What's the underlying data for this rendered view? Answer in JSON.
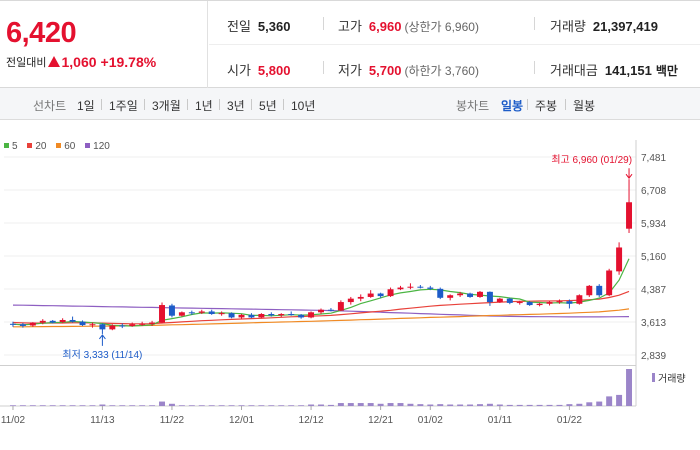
{
  "quote": {
    "price": "6,420",
    "change_label": "전일대비",
    "change_value": "1,060",
    "change_percent": "+19.78%",
    "prev_close_label": "전일",
    "prev_close": "5,360",
    "high_label": "고가",
    "high": "6,960",
    "upper_limit_label": "(상한가 6,960)",
    "volume_label": "거래량",
    "volume": "21,397,419",
    "open_label": "시가",
    "open": "5,800",
    "low_label": "저가",
    "low": "5,700",
    "lower_limit_label": "(하한가 3,760)",
    "amount_label": "거래대금",
    "amount": "141,151",
    "amount_unit": "백만"
  },
  "tabs": {
    "line_label": "선차트",
    "line_periods": [
      "1일",
      "1주일",
      "3개월",
      "1년",
      "3년",
      "5년",
      "10년"
    ],
    "candle_label": "봉차트",
    "candle_periods": [
      "일봉",
      "주봉",
      "월봉"
    ],
    "candle_active": "일봉"
  },
  "colors": {
    "up": "#e4112f",
    "down": "#1d5cc8",
    "ma5": "#4bb543",
    "ma20": "#e8413a",
    "ma60": "#f08a24",
    "ma120": "#8e5fc2"
  },
  "chart_data": {
    "type": "candlestick",
    "legend": [
      {
        "label": "5",
        "color": "#4bb543"
      },
      {
        "label": "20",
        "color": "#e8413a"
      },
      {
        "label": "60",
        "color": "#f08a24"
      },
      {
        "label": "120",
        "color": "#8e5fc2"
      }
    ],
    "y_ticks": [
      "7,481",
      "6,708",
      "5,934",
      "5,160",
      "4,387",
      "3,613",
      "2,839"
    ],
    "ylim": [
      2839,
      7481
    ],
    "x_ticks": [
      "11/02",
      "11/13",
      "11/22",
      "12/01",
      "12/12",
      "12/21",
      "01/02",
      "01/11",
      "01/22"
    ],
    "x_tick_index": [
      0,
      9,
      16,
      23,
      30,
      37,
      42,
      49,
      56
    ],
    "max_annotation": "최고 6,960 (01/29)",
    "min_annotation": "최저 3,333 (11/14)",
    "volume_label": "거래량",
    "candles": [
      [
        3570,
        3620,
        3500,
        3560
      ],
      [
        3560,
        3590,
        3480,
        3520
      ],
      [
        3530,
        3610,
        3500,
        3600
      ],
      [
        3600,
        3680,
        3560,
        3640
      ],
      [
        3640,
        3660,
        3580,
        3600
      ],
      [
        3610,
        3700,
        3590,
        3660
      ],
      [
        3660,
        3740,
        3600,
        3620
      ],
      [
        3620,
        3650,
        3520,
        3540
      ],
      [
        3540,
        3600,
        3480,
        3560
      ],
      [
        3560,
        3580,
        3333,
        3440
      ],
      [
        3440,
        3560,
        3420,
        3530
      ],
      [
        3530,
        3580,
        3470,
        3520
      ],
      [
        3520,
        3600,
        3500,
        3560
      ],
      [
        3560,
        3620,
        3520,
        3570
      ],
      [
        3570,
        3640,
        3520,
        3600
      ],
      [
        3600,
        4070,
        3580,
        4010
      ],
      [
        4000,
        4040,
        3720,
        3760
      ],
      [
        3760,
        3860,
        3740,
        3840
      ],
      [
        3840,
        3880,
        3780,
        3830
      ],
      [
        3830,
        3900,
        3800,
        3860
      ],
      [
        3860,
        3900,
        3780,
        3800
      ],
      [
        3800,
        3860,
        3760,
        3820
      ],
      [
        3820,
        3840,
        3700,
        3720
      ],
      [
        3720,
        3800,
        3690,
        3780
      ],
      [
        3780,
        3820,
        3700,
        3720
      ],
      [
        3720,
        3820,
        3700,
        3800
      ],
      [
        3800,
        3840,
        3740,
        3770
      ],
      [
        3770,
        3820,
        3730,
        3800
      ],
      [
        3800,
        3860,
        3760,
        3780
      ],
      [
        3780,
        3800,
        3690,
        3720
      ],
      [
        3720,
        3860,
        3700,
        3840
      ],
      [
        3840,
        3930,
        3800,
        3900
      ],
      [
        3900,
        3940,
        3860,
        3880
      ],
      [
        3880,
        4120,
        3870,
        4080
      ],
      [
        4080,
        4200,
        4020,
        4160
      ],
      [
        4160,
        4260,
        4100,
        4200
      ],
      [
        4200,
        4360,
        4180,
        4280
      ],
      [
        4280,
        4300,
        4180,
        4220
      ],
      [
        4220,
        4420,
        4200,
        4380
      ],
      [
        4380,
        4460,
        4360,
        4420
      ],
      [
        4420,
        4520,
        4380,
        4440
      ],
      [
        4440,
        4480,
        4400,
        4420
      ],
      [
        4420,
        4460,
        4360,
        4390
      ],
      [
        4390,
        4420,
        4150,
        4180
      ],
      [
        4180,
        4260,
        4120,
        4240
      ],
      [
        4240,
        4320,
        4200,
        4280
      ],
      [
        4280,
        4300,
        4180,
        4200
      ],
      [
        4200,
        4340,
        4180,
        4320
      ],
      [
        4320,
        4330,
        3990,
        4080
      ],
      [
        4080,
        4180,
        4060,
        4160
      ],
      [
        4160,
        4180,
        4030,
        4060
      ],
      [
        4060,
        4110,
        4020,
        4080
      ],
      [
        4080,
        4100,
        3990,
        4010
      ],
      [
        4010,
        4060,
        3980,
        4040
      ],
      [
        4040,
        4100,
        4000,
        4080
      ],
      [
        4080,
        4140,
        4040,
        4100
      ],
      [
        4100,
        4140,
        3930,
        4040
      ],
      [
        4040,
        4260,
        4020,
        4240
      ],
      [
        4240,
        4480,
        4200,
        4460
      ],
      [
        4460,
        4500,
        4200,
        4240
      ],
      [
        4240,
        4860,
        4220,
        4820
      ],
      [
        4800,
        5480,
        4720,
        5360
      ],
      [
        5800,
        6960,
        5700,
        6420
      ]
    ],
    "volume_relative": [
      0.02,
      0.02,
      0.02,
      0.02,
      0.02,
      0.02,
      0.02,
      0.02,
      0.02,
      0.04,
      0.02,
      0.02,
      0.02,
      0.02,
      0.02,
      0.12,
      0.06,
      0.02,
      0.02,
      0.02,
      0.02,
      0.02,
      0.02,
      0.02,
      0.02,
      0.02,
      0.02,
      0.02,
      0.02,
      0.02,
      0.04,
      0.04,
      0.03,
      0.08,
      0.08,
      0.08,
      0.08,
      0.06,
      0.08,
      0.08,
      0.06,
      0.05,
      0.04,
      0.05,
      0.04,
      0.04,
      0.04,
      0.05,
      0.06,
      0.04,
      0.03,
      0.03,
      0.03,
      0.03,
      0.03,
      0.03,
      0.05,
      0.06,
      0.1,
      0.12,
      0.26,
      0.3,
      1.0
    ],
    "ma5": [
      3560,
      3545,
      3560,
      3584,
      3598,
      3604,
      3624,
      3612,
      3596,
      3578,
      3534,
      3526,
      3518,
      3530,
      3544,
      3652,
      3692,
      3734,
      3788,
      3826,
      3822,
      3826,
      3818,
      3808,
      3768,
      3768,
      3758,
      3770,
      3784,
      3774,
      3782,
      3800,
      3820,
      3884,
      3956,
      4044,
      4110,
      4178,
      4248,
      4296,
      4328,
      4366,
      4380,
      4366,
      4328,
      4302,
      4262,
      4244,
      4222,
      4208,
      4176,
      4152,
      4078,
      4070,
      4058,
      4064,
      4056,
      4080,
      4118,
      4174,
      4294,
      4596,
      5094
    ],
    "ma20": [
      3600,
      3592,
      3588,
      3588,
      3590,
      3590,
      3594,
      3594,
      3592,
      3588,
      3580,
      3574,
      3570,
      3570,
      3572,
      3590,
      3600,
      3614,
      3628,
      3642,
      3652,
      3664,
      3674,
      3684,
      3692,
      3700,
      3712,
      3722,
      3734,
      3742,
      3750,
      3758,
      3768,
      3786,
      3804,
      3826,
      3846,
      3866,
      3888,
      3914,
      3936,
      3960,
      3984,
      4002,
      4016,
      4030,
      4042,
      4056,
      4068,
      4080,
      4088,
      4096,
      4100,
      4104,
      4106,
      4110,
      4114,
      4124,
      4136,
      4150,
      4186,
      4240,
      4330
    ],
    "ma60": [
      3500,
      3500,
      3502,
      3504,
      3506,
      3508,
      3510,
      3512,
      3514,
      3516,
      3518,
      3522,
      3526,
      3530,
      3534,
      3540,
      3546,
      3550,
      3556,
      3562,
      3568,
      3574,
      3580,
      3588,
      3594,
      3600,
      3606,
      3612,
      3618,
      3624,
      3630,
      3636,
      3642,
      3650,
      3658,
      3666,
      3672,
      3680,
      3688,
      3696,
      3704,
      3712,
      3720,
      3726,
      3732,
      3740,
      3748,
      3756,
      3764,
      3770,
      3778,
      3784,
      3790,
      3796,
      3804,
      3812,
      3820,
      3830,
      3840,
      3850,
      3870,
      3890,
      3920
    ],
    "ma120": [
      4010,
      4006,
      4002,
      3998,
      3994,
      3990,
      3986,
      3982,
      3978,
      3974,
      3970,
      3966,
      3962,
      3958,
      3954,
      3950,
      3946,
      3942,
      3938,
      3934,
      3930,
      3926,
      3922,
      3918,
      3914,
      3910,
      3906,
      3902,
      3898,
      3894,
      3890,
      3886,
      3880,
      3874,
      3866,
      3858,
      3850,
      3842,
      3834,
      3826,
      3818,
      3810,
      3802,
      3794,
      3786,
      3778,
      3770,
      3762,
      3754,
      3748,
      3744,
      3742,
      3740,
      3738,
      3736,
      3734,
      3732,
      3732,
      3732,
      3732,
      3734,
      3736,
      3740
    ]
  }
}
